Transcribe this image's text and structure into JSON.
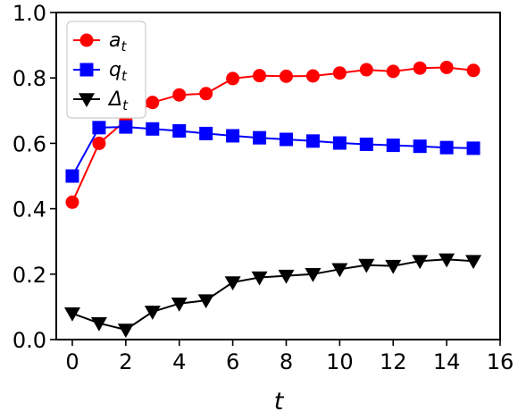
{
  "chart_data": {
    "type": "line",
    "title": "",
    "xlabel": "t",
    "ylabel": "",
    "xlim": [
      -0.6,
      16
    ],
    "ylim": [
      0.0,
      1.0
    ],
    "xticks": [
      0,
      2,
      4,
      6,
      8,
      10,
      12,
      14,
      16
    ],
    "yticks": [
      0.0,
      0.2,
      0.4,
      0.6,
      0.8,
      1.0
    ],
    "xtick_labels": [
      "0",
      "2",
      "4",
      "6",
      "8",
      "10",
      "12",
      "14",
      "16"
    ],
    "ytick_labels": [
      "0.0",
      "0.2",
      "0.4",
      "0.6",
      "0.8",
      "1.0"
    ],
    "grid": false,
    "legend_position": "top-left",
    "x": [
      0,
      1,
      2,
      3,
      4,
      5,
      6,
      7,
      8,
      9,
      10,
      11,
      12,
      13,
      14,
      15
    ],
    "series": [
      {
        "name": "a",
        "name_sub": "t",
        "color": "#ff0000",
        "marker": "circle",
        "values": [
          0.42,
          0.6,
          0.67,
          0.725,
          0.748,
          0.752,
          0.798,
          0.807,
          0.805,
          0.806,
          0.815,
          0.825,
          0.82,
          0.83,
          0.832,
          0.823
        ]
      },
      {
        "name": "q",
        "name_sub": "t",
        "color": "#0000ff",
        "marker": "square",
        "values": [
          0.5,
          0.648,
          0.65,
          0.644,
          0.638,
          0.63,
          0.623,
          0.617,
          0.612,
          0.607,
          0.601,
          0.597,
          0.594,
          0.591,
          0.587,
          0.585
        ]
      },
      {
        "name": "Δ",
        "name_sub": "t",
        "color": "#000000",
        "marker": "triangle-down",
        "values": [
          0.08,
          0.05,
          0.03,
          0.085,
          0.11,
          0.12,
          0.175,
          0.19,
          0.195,
          0.2,
          0.215,
          0.228,
          0.225,
          0.24,
          0.245,
          0.24
        ]
      }
    ]
  }
}
